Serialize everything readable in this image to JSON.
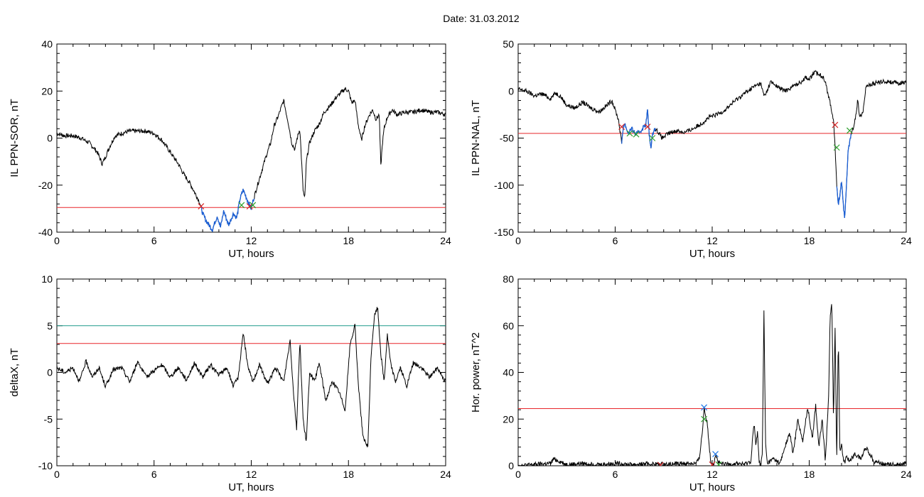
{
  "header": {
    "title": "Date:  31.03.2012"
  },
  "colors": {
    "threshold_red": "#e8262a",
    "threshold_green": "#1e9a8a",
    "trace_blue": "#1a5fd6",
    "marker_red": "#d62728",
    "marker_green": "#2ca02c",
    "marker_blue": "#1f77e8"
  },
  "chart_data": [
    {
      "id": "ppn-sor",
      "type": "line",
      "ylabel": "IL PPN-SOR, nT",
      "xlabel": "UT, hours",
      "xlim": [
        0,
        24
      ],
      "ylim": [
        -40,
        40
      ],
      "xticks": [
        0,
        6,
        12,
        18,
        24
      ],
      "yticks": [
        -40,
        -20,
        0,
        20,
        40
      ],
      "thresholds": [
        {
          "value": -29.5,
          "color": "red"
        }
      ],
      "highlight_ranges": [
        [
          8.9,
          12.2
        ]
      ],
      "markers": [
        {
          "x": 8.9,
          "y": -29,
          "color": "red"
        },
        {
          "x": 11.4,
          "y": -28.5,
          "color": "green"
        },
        {
          "x": 11.9,
          "y": -29,
          "color": "red"
        },
        {
          "x": 12.1,
          "y": -28.5,
          "color": "green"
        }
      ],
      "series": [
        {
          "x": [
            0,
            0.5,
            1,
            1.5,
            2,
            2.5,
            2.8,
            3.0,
            3.3,
            3.6,
            4.0,
            4.5,
            5.0,
            5.5,
            6.0,
            6.5,
            7.0,
            7.5,
            7.8,
            8.0,
            8.2,
            8.5,
            8.8,
            9.0,
            9.2,
            9.4,
            9.6,
            9.9,
            10.1,
            10.3,
            10.6,
            10.9,
            11.1,
            11.3,
            11.5,
            11.8,
            12.0,
            12.1,
            12.3,
            12.6,
            12.9,
            13.2,
            13.4,
            13.7,
            14.0,
            14.3,
            14.5,
            14.7,
            14.8,
            15.0,
            15.2,
            15.3,
            15.4,
            15.6,
            15.9,
            16.2,
            16.5,
            16.9,
            17.2,
            17.5,
            17.8,
            18.0,
            18.2,
            18.4,
            18.6,
            18.8,
            19.0,
            19.3,
            19.5,
            19.7,
            19.9,
            20.0,
            20.1,
            20.2,
            20.4,
            20.7,
            21.0,
            21.5,
            22,
            22.5,
            23,
            23.5,
            24
          ],
          "y": [
            2,
            1,
            1,
            0,
            -2,
            -6,
            -11,
            -8,
            -3,
            1,
            2,
            3,
            3,
            3,
            2,
            -1,
            -6,
            -11,
            -15,
            -17,
            -19,
            -23,
            -27,
            -32,
            -35,
            -37,
            -39,
            -33,
            -38,
            -31,
            -37,
            -32,
            -34,
            -26,
            -22,
            -27,
            -30,
            -27,
            -22,
            -15,
            -8,
            -2,
            5,
            10,
            16,
            6,
            -2,
            -5,
            -1,
            4,
            -22,
            -26,
            -10,
            -2,
            3,
            6,
            11,
            14,
            17,
            19,
            21,
            20,
            15,
            16,
            6,
            -1,
            5,
            10,
            12,
            8,
            10,
            -12,
            -2,
            4,
            9,
            12,
            10,
            11,
            11,
            12,
            11,
            11,
            10
          ]
        }
      ]
    },
    {
      "id": "ppn-nal",
      "type": "line",
      "ylabel": "IL PPN-NAL, nT",
      "xlabel": "UT, hours",
      "xlim": [
        0,
        24
      ],
      "ylim": [
        -150,
        50
      ],
      "xticks": [
        0,
        6,
        12,
        18,
        24
      ],
      "yticks": [
        -150,
        -100,
        -50,
        0,
        50
      ],
      "thresholds": [
        {
          "value": -45,
          "color": "red"
        }
      ],
      "highlight_ranges": [
        [
          6.4,
          8.5
        ],
        [
          19.7,
          20.6
        ]
      ],
      "markers": [
        {
          "x": 6.4,
          "y": -38,
          "color": "red"
        },
        {
          "x": 6.9,
          "y": -45,
          "color": "green"
        },
        {
          "x": 7.3,
          "y": -46,
          "color": "green"
        },
        {
          "x": 8.0,
          "y": -38,
          "color": "red"
        },
        {
          "x": 8.3,
          "y": -50,
          "color": "green"
        },
        {
          "x": 19.6,
          "y": -36,
          "color": "red"
        },
        {
          "x": 19.7,
          "y": -60,
          "color": "green"
        },
        {
          "x": 20.5,
          "y": -42,
          "color": "green"
        }
      ],
      "series": [
        {
          "x": [
            0,
            0.5,
            1,
            1.5,
            2,
            2.3,
            2.6,
            3,
            3.5,
            4,
            4.5,
            5,
            5.5,
            5.8,
            6,
            6.2,
            6.4,
            6.5,
            6.6,
            6.8,
            7.0,
            7.3,
            7.6,
            7.9,
            8.0,
            8.1,
            8.2,
            8.3,
            8.4,
            8.6,
            8.9,
            9.3,
            9.8,
            10.3,
            10.8,
            11.3,
            11.8,
            12.3,
            12.8,
            13.3,
            13.8,
            14.2,
            14.6,
            15.0,
            15.2,
            15.4,
            15.6,
            16,
            16.5,
            17,
            17.5,
            17.8,
            18,
            18.3,
            18.6,
            18.9,
            19.2,
            19.5,
            19.6,
            19.7,
            19.8,
            19.9,
            20.0,
            20.1,
            20.2,
            20.3,
            20.4,
            20.6,
            20.8,
            21.0,
            21.1,
            21.3,
            21.5,
            22,
            22.5,
            23,
            23.5,
            24
          ],
          "y": [
            2,
            0,
            -5,
            -3,
            -8,
            -2,
            -5,
            -15,
            -18,
            -12,
            -18,
            -22,
            -15,
            -10,
            -20,
            -30,
            -55,
            -38,
            -35,
            -45,
            -40,
            -46,
            -42,
            -35,
            -20,
            -45,
            -60,
            -48,
            -40,
            -42,
            -50,
            -45,
            -42,
            -44,
            -40,
            -35,
            -28,
            -25,
            -20,
            -12,
            -5,
            0,
            5,
            8,
            -5,
            0,
            10,
            5,
            0,
            5,
            10,
            15,
            12,
            20,
            18,
            15,
            -5,
            -30,
            -60,
            -100,
            -120,
            -110,
            -95,
            -120,
            -135,
            -100,
            -65,
            -45,
            -35,
            -10,
            -25,
            -25,
            5,
            8,
            10,
            10,
            8,
            10
          ]
        }
      ]
    },
    {
      "id": "deltax",
      "type": "line",
      "ylabel": "deltaX, nT",
      "xlabel": "UT, hours",
      "xlim": [
        0,
        24
      ],
      "ylim": [
        -10,
        10
      ],
      "xticks": [
        0,
        6,
        12,
        18,
        24
      ],
      "yticks": [
        -10,
        -5,
        0,
        5,
        10
      ],
      "thresholds": [
        {
          "value": 5,
          "color": "green"
        },
        {
          "value": 3.1,
          "color": "red"
        }
      ],
      "highlight_ranges": [],
      "markers": [],
      "series": [
        {
          "x": [
            0,
            0.5,
            1,
            1.4,
            1.8,
            2.2,
            2.6,
            3,
            3.5,
            4,
            4.5,
            5,
            5.5,
            6,
            6.5,
            7,
            7.5,
            8,
            8.5,
            9,
            9.5,
            10,
            10.5,
            10.9,
            11.2,
            11.5,
            11.8,
            12.1,
            12.5,
            13,
            13.5,
            14,
            14.4,
            14.6,
            14.8,
            15.0,
            15.2,
            15.4,
            15.6,
            15.9,
            16.2,
            16.6,
            17.0,
            17.4,
            17.8,
            18.1,
            18.4,
            18.6,
            18.9,
            19.2,
            19.4,
            19.6,
            19.8,
            20.0,
            20.2,
            20.4,
            20.6,
            20.9,
            21.2,
            21.6,
            22,
            22.5,
            23,
            23.5,
            24
          ],
          "y": [
            0.5,
            0,
            0.5,
            -1,
            1.2,
            -0.5,
            0.5,
            -1.5,
            0.3,
            0.5,
            -1,
            1.2,
            -0.5,
            0.2,
            0.8,
            -0.5,
            0.5,
            -0.8,
            1,
            -0.5,
            0.8,
            -0.3,
            0.5,
            -1.5,
            -0.5,
            4.3,
            0.5,
            -1,
            0.8,
            -1.2,
            0.5,
            -1,
            3.5,
            -2,
            -6,
            3.5,
            -5,
            -7.5,
            0,
            -1,
            1,
            -3,
            -1,
            -2,
            -4,
            3,
            5,
            -1,
            -7,
            -8,
            2,
            6,
            7,
            2,
            -1,
            4,
            1,
            -1,
            0.5,
            -1.5,
            1,
            0.5,
            -0.5,
            0.5,
            -1
          ]
        }
      ]
    },
    {
      "id": "hor-power",
      "type": "line",
      "ylabel": "Hor. power, nT^2",
      "xlabel": "UT, hours",
      "xlim": [
        0,
        24
      ],
      "ylim": [
        0,
        80
      ],
      "xticks": [
        0,
        6,
        12,
        18,
        24
      ],
      "yticks": [
        0,
        20,
        40,
        60,
        80
      ],
      "thresholds": [
        {
          "value": 24.5,
          "color": "red"
        }
      ],
      "highlight_ranges": [],
      "markers": [
        {
          "x": 8.8,
          "y": 0.3,
          "color": "red"
        },
        {
          "x": 11.5,
          "y": 25,
          "color": "blue"
        },
        {
          "x": 11.5,
          "y": 20,
          "color": "green"
        },
        {
          "x": 12.2,
          "y": 5,
          "color": "blue"
        },
        {
          "x": 12.0,
          "y": 0.5,
          "color": "red"
        },
        {
          "x": 12.4,
          "y": 0.5,
          "color": "green"
        }
      ],
      "series": [
        {
          "x": [
            0,
            1,
            2,
            2.2,
            3,
            4,
            5,
            6,
            7,
            8,
            9,
            10,
            11,
            11.2,
            11.4,
            11.5,
            11.7,
            11.9,
            12.1,
            12.2,
            12.4,
            12.8,
            13.5,
            14,
            14.4,
            14.5,
            14.6,
            14.7,
            14.8,
            14.9,
            15.0,
            15.1,
            15.2,
            15.3,
            15.4,
            15.8,
            16.2,
            16.5,
            16.8,
            17,
            17.3,
            17.6,
            17.9,
            18.2,
            18.4,
            18.6,
            18.8,
            19.0,
            19.2,
            19.3,
            19.4,
            19.5,
            19.6,
            19.7,
            19.8,
            19.9,
            20.0,
            20.1,
            20.2,
            20.3,
            20.5,
            20.8,
            21.2,
            21.5,
            22,
            22.5,
            23,
            23.5,
            24
          ],
          "y": [
            0,
            0.5,
            1,
            3,
            0.5,
            1,
            0.5,
            1,
            0.5,
            0.8,
            0.5,
            1,
            1,
            3,
            15,
            25,
            18,
            2,
            0.5,
            5,
            1,
            0.5,
            1,
            0.5,
            2,
            12,
            18,
            8,
            15,
            2,
            0,
            5,
            66,
            10,
            1,
            3,
            1,
            8,
            14,
            5,
            20,
            10,
            25,
            12,
            26,
            8,
            20,
            2,
            30,
            65,
            70,
            20,
            60,
            2,
            55,
            5,
            10,
            3,
            1,
            4,
            2,
            5,
            3,
            8,
            2,
            1,
            0.5,
            0.5,
            1
          ]
        }
      ]
    }
  ]
}
